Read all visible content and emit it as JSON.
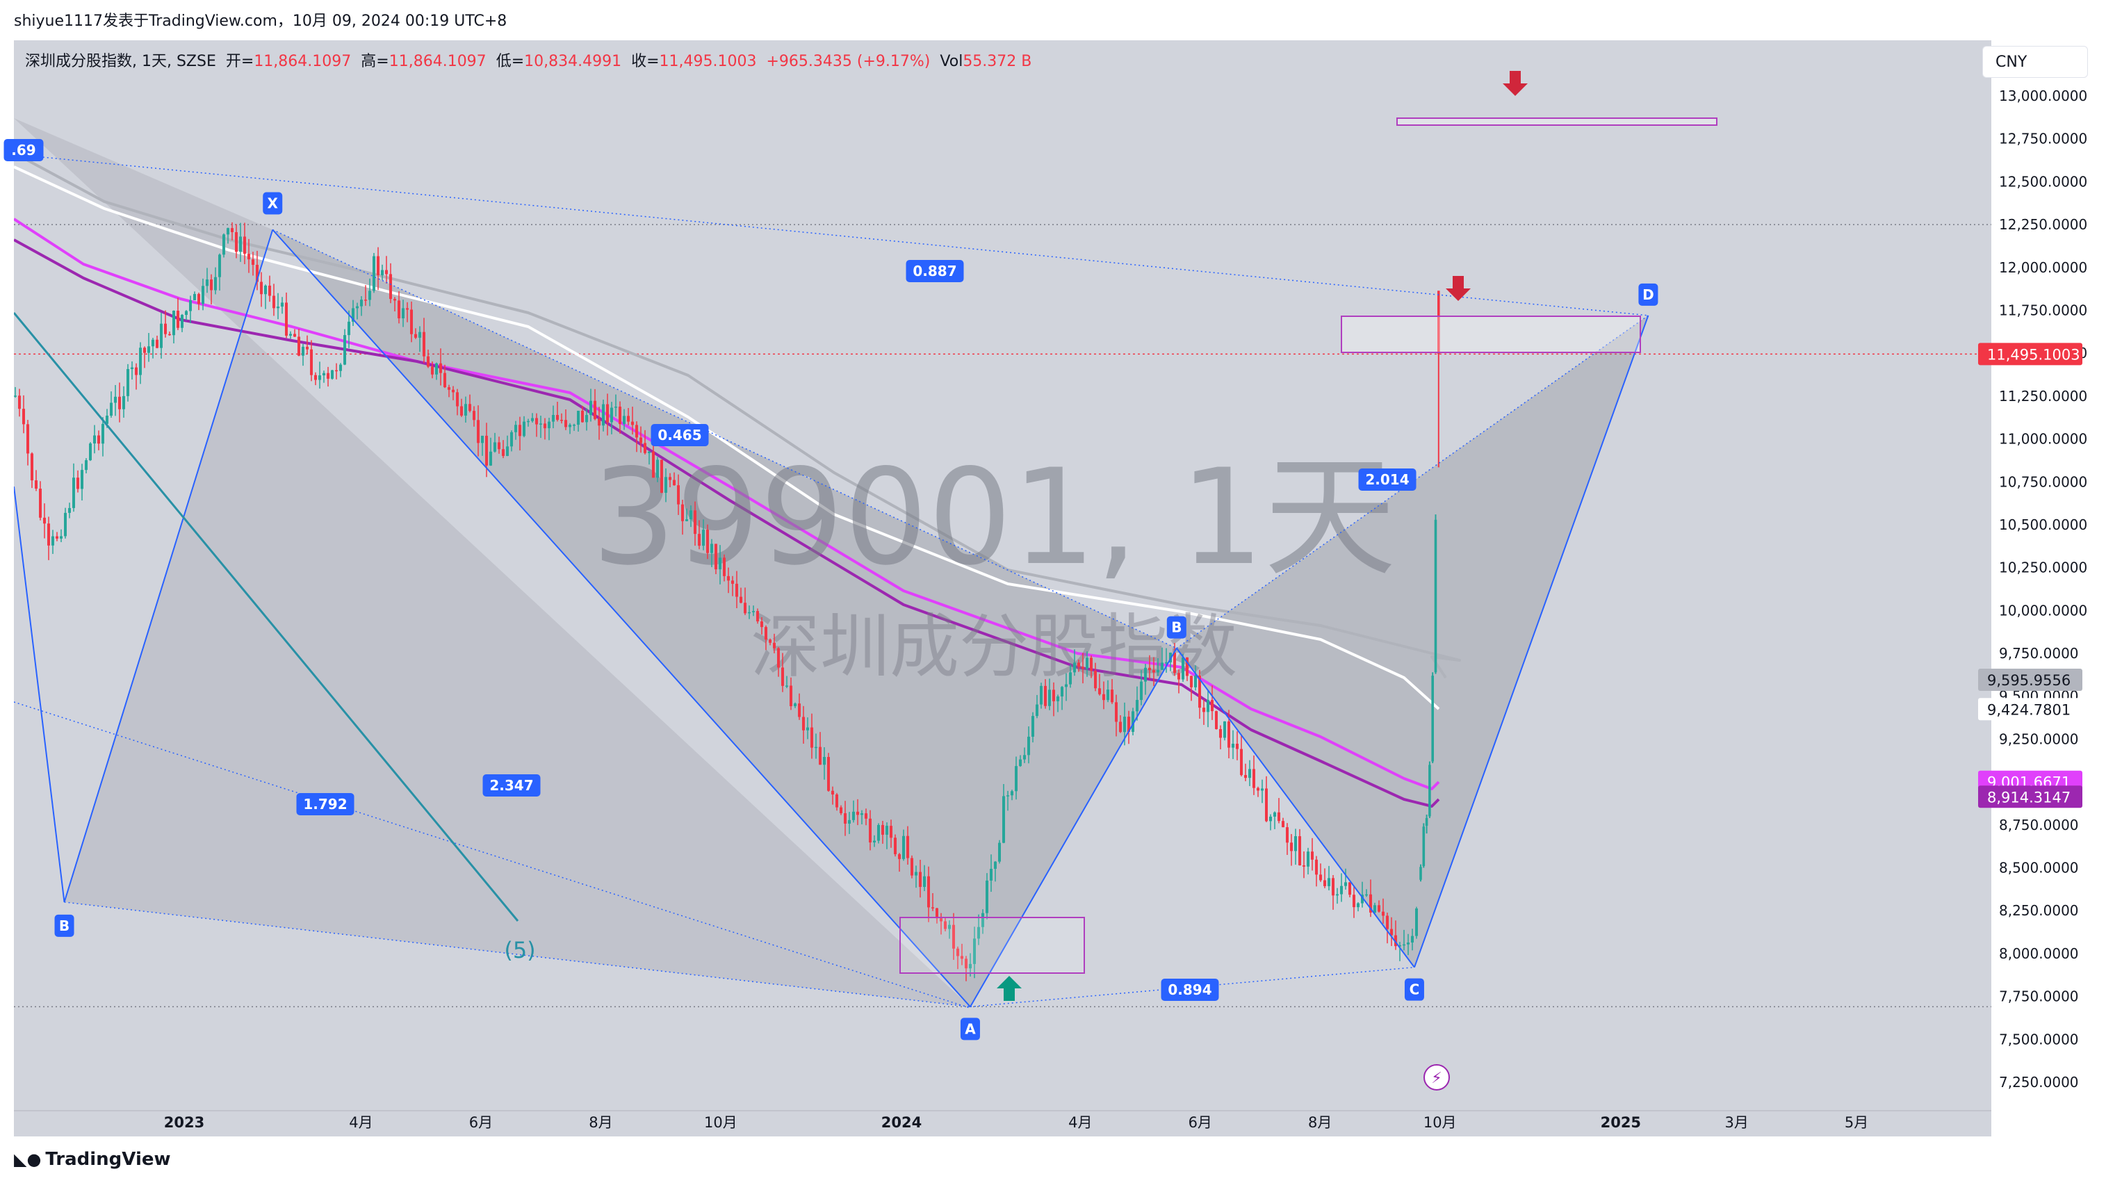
{
  "header": {
    "publish_line": "shiyue1117发表于TradingView.com，10月 09, 2024 00:19 UTC+8"
  },
  "legend": {
    "symbol": "深圳成分股指数, 1天, SZSE",
    "open_label": "开=",
    "open_value": "11,864.1097",
    "high_label": "高=",
    "high_value": "11,864.1097",
    "low_label": "低=",
    "low_value": "10,834.4991",
    "close_label": "收=",
    "close_value": "11,495.1003",
    "change": "+965.3435 (+9.17%)",
    "vol_label": "Vol",
    "vol_value": "55.372 B"
  },
  "currency_button": "CNY",
  "watermark": {
    "line1": "399001, 1天",
    "line2": "深圳成分股指数"
  },
  "footer": {
    "brand": "TradingView"
  },
  "colors": {
    "up": "#26a69a",
    "down": "#f23645",
    "pattern_line": "#2962ff",
    "ma_magenta": "#e040fb",
    "ma_purple": "#9c27b0",
    "ma_gray": "#b0b3bb",
    "ma_white": "#ffffff",
    "box_border": "#b03fbf",
    "fib_label_bg": "#2962ff",
    "wave_line": "#2891a6"
  },
  "chart_data": {
    "type": "candlestick",
    "y_axis": {
      "ticks": [
        "13,000.0000",
        "12,750.0000",
        "12,500.0000",
        "12,250.0000",
        "12,000.0000",
        "11,750.0000",
        "11,500.0000",
        "11,250.0000",
        "11,000.0000",
        "10,750.0000",
        "10,500.0000",
        "10,250.0000",
        "10,000.0000",
        "9,750.0000",
        "9,500.0000",
        "9,250.0000",
        "9,000.0000",
        "8,750.0000",
        "8,500.0000",
        "8,250.0000",
        "8,000.0000",
        "7,750.0000",
        "7,500.0000",
        "7,250.0000"
      ],
      "ylim": [
        7150,
        13100
      ]
    },
    "x_axis": {
      "ticks": [
        {
          "label": "2023",
          "date": "2023-01-01",
          "bold": true
        },
        {
          "label": "4月",
          "date": "2023-04-01",
          "bold": false
        },
        {
          "label": "6月",
          "date": "2023-06-01",
          "bold": false
        },
        {
          "label": "8月",
          "date": "2023-08-01",
          "bold": false
        },
        {
          "label": "10月",
          "date": "2023-10-01",
          "bold": false
        },
        {
          "label": "2024",
          "date": "2024-01-01",
          "bold": true
        },
        {
          "label": "4月",
          "date": "2024-04-01",
          "bold": false
        },
        {
          "label": "6月",
          "date": "2024-06-01",
          "bold": false
        },
        {
          "label": "8月",
          "date": "2024-08-01",
          "bold": false
        },
        {
          "label": "10月",
          "date": "2024-10-01",
          "bold": false
        },
        {
          "label": "2025",
          "date": "2025-01-01",
          "bold": true
        },
        {
          "label": "3月",
          "date": "2025-03-01",
          "bold": false
        },
        {
          "label": "5月",
          "date": "2025-05-01",
          "bold": false
        }
      ]
    },
    "price_labels": [
      {
        "text": "11,495.1003",
        "value": 11495.1003,
        "bg": "#f23645",
        "fg": "#ffffff"
      },
      {
        "text": "9,595.9556",
        "value": 9595.9556,
        "bg": "#b2b5be",
        "fg": "#131722"
      },
      {
        "text": "9,424.7801",
        "value": 9424.7801,
        "bg": "#ffffff",
        "fg": "#131722"
      },
      {
        "text": "9,001.6671",
        "value": 9001.6671,
        "bg": "#e040fb",
        "fg": "#ffffff"
      },
      {
        "text": "8,914.3147",
        "value": 8914.3147,
        "bg": "#9c27b0",
        "fg": "#ffffff"
      }
    ],
    "harmonic_points": [
      {
        "label": "X",
        "date": "2023-02-15",
        "price": 12220
      },
      {
        "label": "A",
        "date": "2024-02-05",
        "price": 7690
      },
      {
        "label": "B",
        "date": "2024-05-20",
        "price": 9780
      },
      {
        "label": "C",
        "date": "2024-09-18",
        "price": 7920
      },
      {
        "label": "D",
        "date": "2025-01-15",
        "price": 11720
      }
    ],
    "earlier_point": {
      "label": "B",
      "date": "2022-11-01",
      "price": 8300
    },
    "fib_ratios": [
      {
        "text": "0.465"
      },
      {
        "text": "0.887"
      },
      {
        "text": "0.894"
      },
      {
        "text": "2.014"
      },
      {
        "text": "2.347"
      },
      {
        "text": "1.792"
      },
      {
        "text": ".69"
      }
    ],
    "wave_label": "(5)",
    "candles": [
      {
        "date": "2024-09-23",
        "open": 8430,
        "high": 8520,
        "low": 8420,
        "close": 8505
      },
      {
        "date": "2024-09-24",
        "open": 8510,
        "high": 8760,
        "low": 8500,
        "close": 8740
      },
      {
        "date": "2024-09-25",
        "open": 8745,
        "high": 8810,
        "low": 8700,
        "close": 8790
      },
      {
        "date": "2024-09-26",
        "open": 8800,
        "high": 9120,
        "low": 8790,
        "close": 9100
      },
      {
        "date": "2024-09-27",
        "open": 9120,
        "high": 9640,
        "low": 9110,
        "close": 9620
      },
      {
        "date": "2024-09-30",
        "open": 9640,
        "high": 10560,
        "low": 9630,
        "close": 10529
      },
      {
        "date": "2024-10-08",
        "open": 11864.1097,
        "high": 11864.1097,
        "low": 10834.4991,
        "close": 11495.1003
      }
    ]
  }
}
